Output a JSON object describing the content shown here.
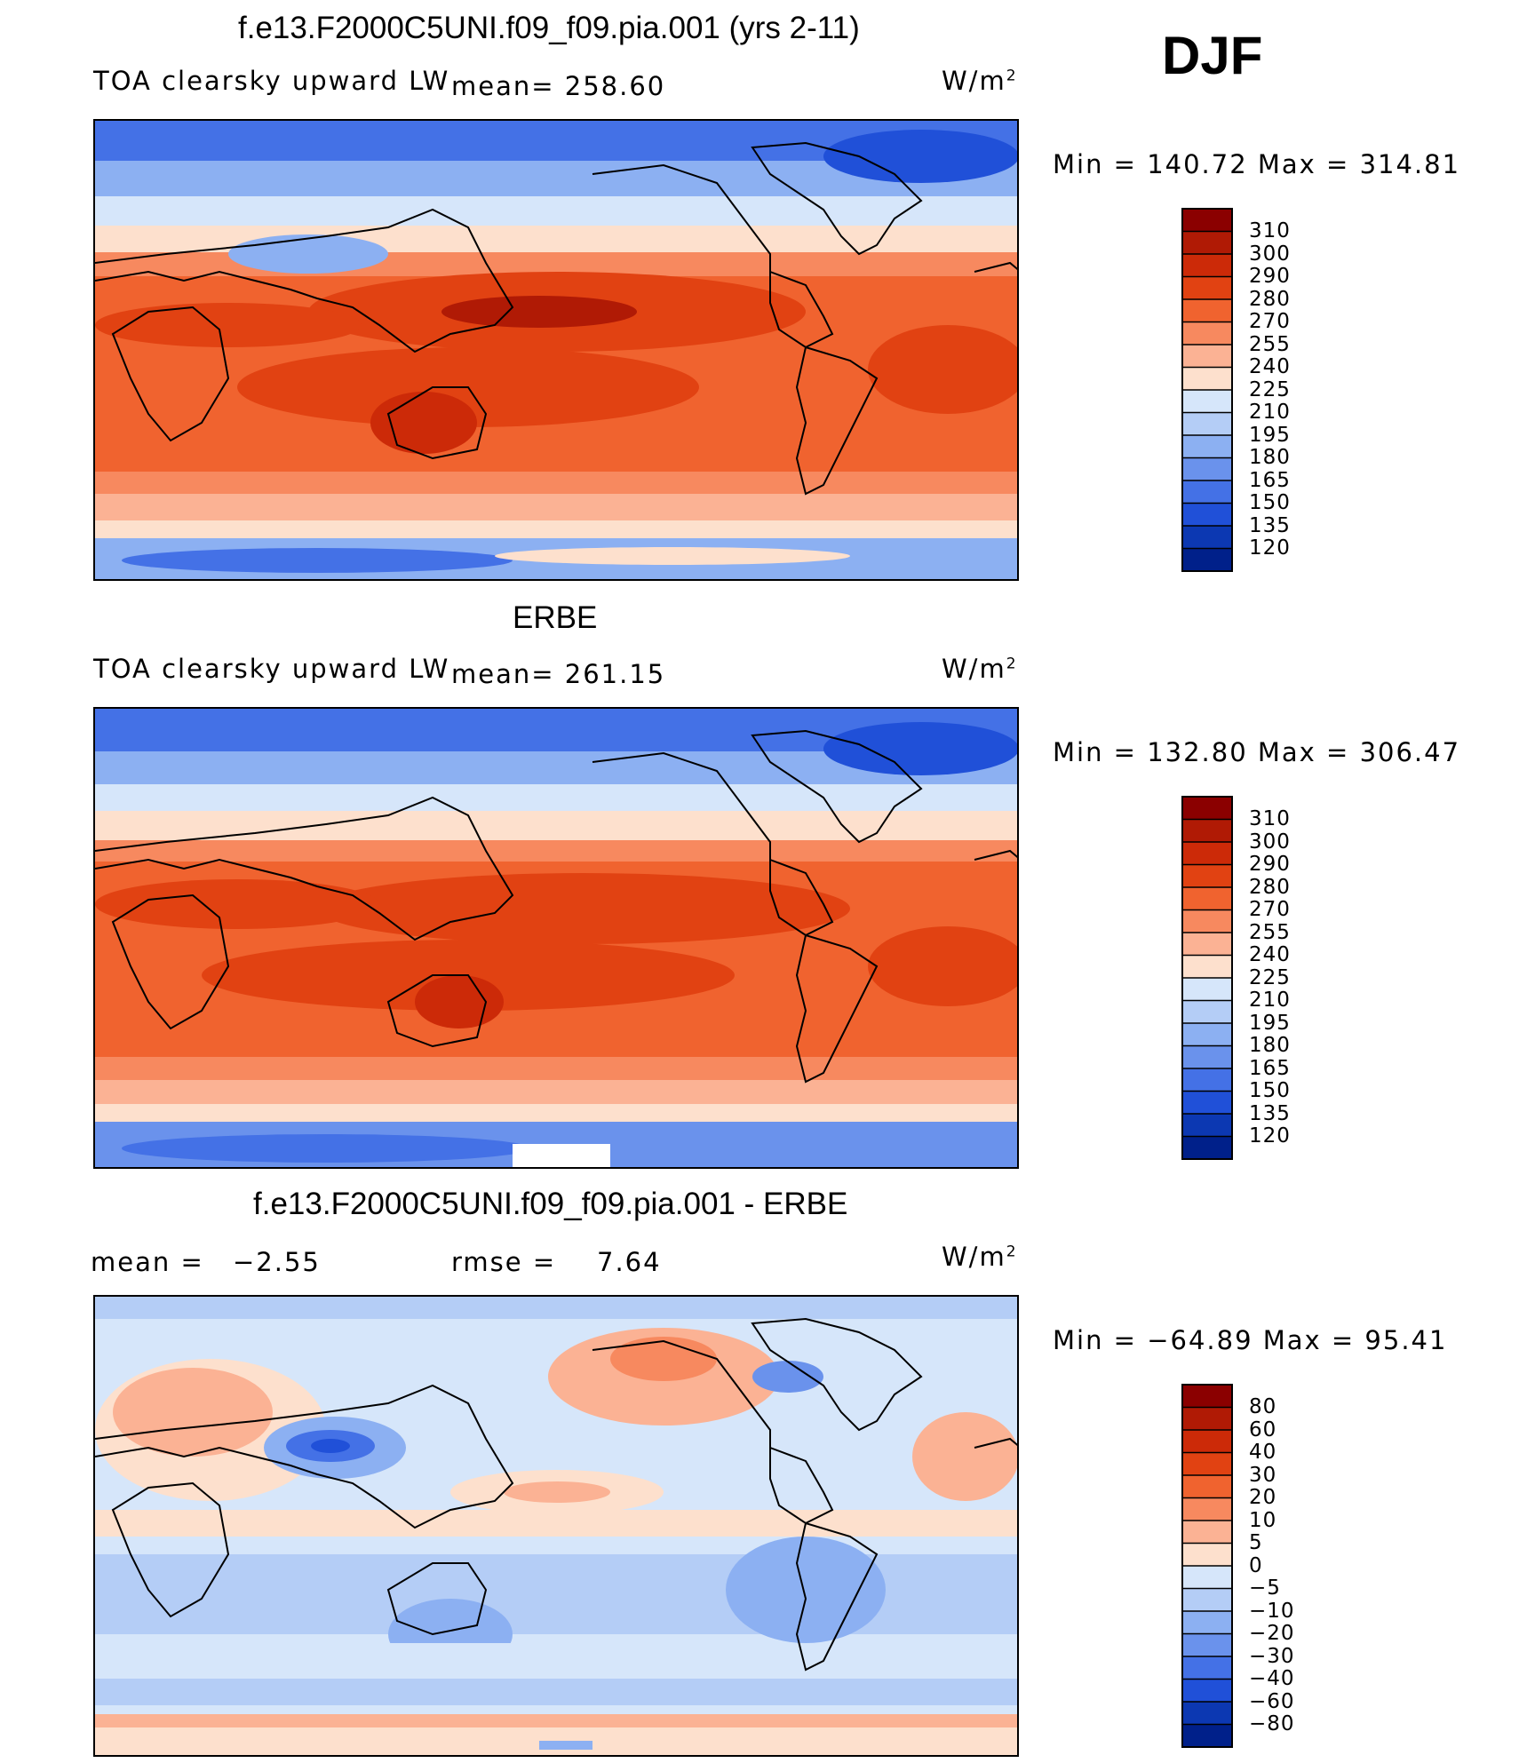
{
  "season": "DJF",
  "units": "W/m",
  "units_sup": "2",
  "chart_data": [
    {
      "type": "heatmap",
      "title": "f.e13.F2000C5UNI.f09_f09.pia.001 (yrs 2-11)",
      "subtitle": "TOA clearsky upward LW",
      "mean_text": "mean=  258.60",
      "minmax_text": "Min  =  140.72  Max  =  314.81",
      "units": "W/m",
      "units_sup": "2",
      "colorbar_levels": [
        "310",
        "300",
        "290",
        "280",
        "270",
        "255",
        "240",
        "225",
        "210",
        "195",
        "180",
        "165",
        "150",
        "135",
        "120"
      ],
      "colors": [
        "#8b0000",
        "#b01a05",
        "#cc2a08",
        "#e14212",
        "#f0632f",
        "#f7895f",
        "#fbb294",
        "#fde0cd",
        "#d6e6fa",
        "#b4cdf6",
        "#8cb0f2",
        "#6a92ec",
        "#4471e6",
        "#2050d8",
        "#0c38b2",
        "#00208a"
      ]
    },
    {
      "type": "heatmap",
      "title": "ERBE",
      "subtitle": "TOA clearsky upward LW",
      "mean_text": "mean=  261.15",
      "minmax_text": "Min  =  132.80  Max  =  306.47",
      "units": "W/m",
      "units_sup": "2",
      "colorbar_levels": [
        "310",
        "300",
        "290",
        "280",
        "270",
        "255",
        "240",
        "225",
        "210",
        "195",
        "180",
        "165",
        "150",
        "135",
        "120"
      ],
      "colors": [
        "#8b0000",
        "#b01a05",
        "#cc2a08",
        "#e14212",
        "#f0632f",
        "#f7895f",
        "#fbb294",
        "#fde0cd",
        "#d6e6fa",
        "#b4cdf6",
        "#8cb0f2",
        "#6a92ec",
        "#4471e6",
        "#2050d8",
        "#0c38b2",
        "#00208a"
      ]
    },
    {
      "type": "heatmap",
      "title": "f.e13.F2000C5UNI.f09_f09.pia.001 - ERBE",
      "mean_label": "mean  =",
      "mean_value": "−2.55",
      "rmse_label": "rmse  =",
      "rmse_value": "7.64",
      "minmax_text": "Min  =  −64.89  Max  =   95.41",
      "units": "W/m",
      "units_sup": "2",
      "colorbar_levels": [
        "80",
        "60",
        "40",
        "30",
        "20",
        "10",
        "5",
        "0",
        "−5",
        "−10",
        "−20",
        "−30",
        "−40",
        "−60",
        "−80"
      ],
      "colors": [
        "#8b0000",
        "#b01a05",
        "#cc2a08",
        "#e14212",
        "#f0632f",
        "#f7895f",
        "#fbb294",
        "#fde0cd",
        "#d6e6fa",
        "#b4cdf6",
        "#8cb0f2",
        "#6a92ec",
        "#4471e6",
        "#2050d8",
        "#0c38b2",
        "#00208a"
      ]
    }
  ]
}
